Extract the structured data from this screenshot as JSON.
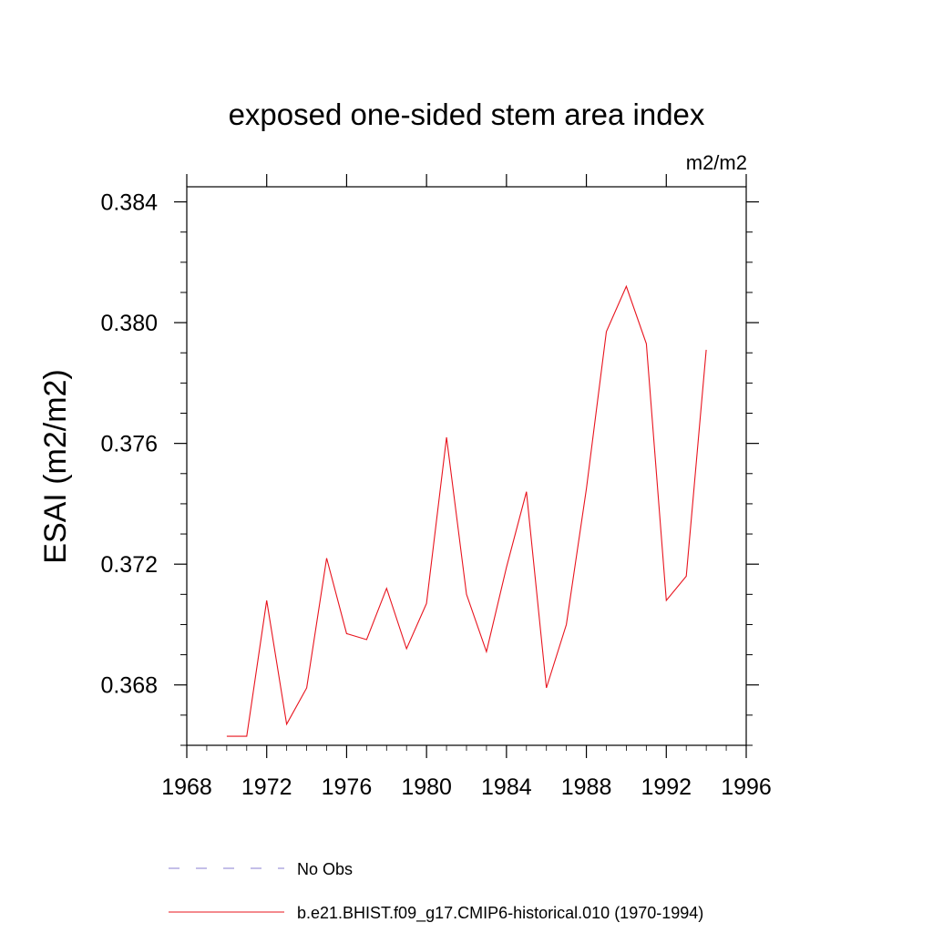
{
  "chart_data": {
    "type": "line",
    "title": "exposed one-sided stem area index",
    "units_label": "m2/m2",
    "xlabel": "",
    "ylabel": "ESAI  (m2/m2)",
    "xlim": [
      1968,
      1996
    ],
    "ylim": [
      0.366,
      0.3845
    ],
    "x_ticks": [
      1968,
      1972,
      1976,
      1980,
      1984,
      1988,
      1992,
      1996
    ],
    "y_ticks": [
      0.368,
      0.372,
      0.376,
      0.38,
      0.384
    ],
    "y_tick_labels": [
      "0.368",
      "0.372",
      "0.376",
      "0.380",
      "0.384"
    ],
    "grid": false,
    "legend_position": "bottom",
    "series": [
      {
        "name": "No Obs",
        "color": "#8a7fd0",
        "style": "dashed",
        "x": [],
        "y": []
      },
      {
        "name": "b.e21.BHIST.f09_g17.CMIP6-historical.010 (1970-1994)",
        "color": "#e8141e",
        "style": "solid",
        "x": [
          1970,
          1971,
          1972,
          1973,
          1974,
          1975,
          1976,
          1977,
          1978,
          1979,
          1980,
          1981,
          1982,
          1983,
          1984,
          1985,
          1986,
          1987,
          1988,
          1989,
          1990,
          1991,
          1992,
          1993,
          1994
        ],
        "y": [
          0.3663,
          0.3663,
          0.3708,
          0.3667,
          0.3679,
          0.3722,
          0.3697,
          0.3695,
          0.3712,
          0.3692,
          0.3707,
          0.3762,
          0.371,
          0.3691,
          0.3719,
          0.3744,
          0.3679,
          0.37,
          0.3745,
          0.3797,
          0.3812,
          0.3793,
          0.3708,
          0.3716,
          0.3791
        ]
      }
    ]
  }
}
